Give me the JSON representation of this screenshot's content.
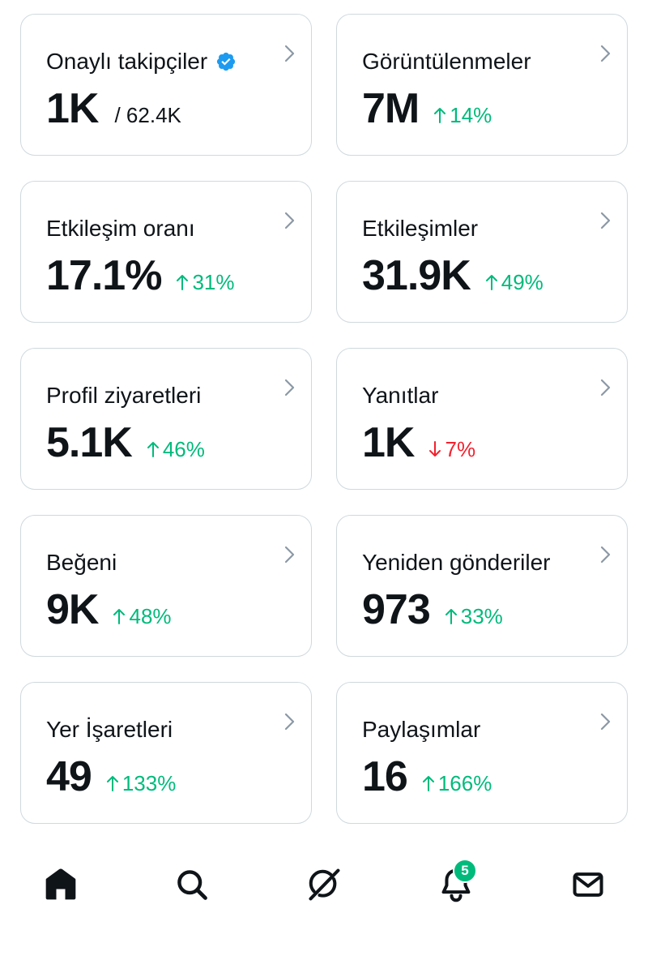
{
  "cards": [
    {
      "title": "Onaylı takipçiler",
      "value": "1K",
      "sub": "/ 62.4K",
      "verified": true
    },
    {
      "title": "Görüntülenmeler",
      "value": "7M",
      "change": "14%",
      "direction": "up"
    },
    {
      "title": "Etkileşim oranı",
      "value": "17.1%",
      "change": "31%",
      "direction": "up"
    },
    {
      "title": "Etkileşimler",
      "value": "31.9K",
      "change": "49%",
      "direction": "up"
    },
    {
      "title": "Profil ziyaretleri",
      "value": "5.1K",
      "change": "46%",
      "direction": "up"
    },
    {
      "title": "Yanıtlar",
      "value": "1K",
      "change": "7%",
      "direction": "down"
    },
    {
      "title": "Beğeni",
      "value": "9K",
      "change": "48%",
      "direction": "up"
    },
    {
      "title": "Yeniden gönderiler",
      "value": "973",
      "change": "33%",
      "direction": "up"
    },
    {
      "title": "Yer İşaretleri",
      "value": "49",
      "change": "133%",
      "direction": "up"
    },
    {
      "title": "Paylaşımlar",
      "value": "16",
      "change": "166%",
      "direction": "up"
    }
  ],
  "nav": {
    "items": [
      {
        "icon": "home-icon"
      },
      {
        "icon": "search-icon"
      },
      {
        "icon": "grok-icon"
      },
      {
        "icon": "bell-icon",
        "badge": "5"
      },
      {
        "icon": "mail-icon"
      }
    ]
  },
  "colors": {
    "up": "#00ba7c",
    "down": "#f4212e",
    "verified": "#1d9bf0",
    "badge": "#00ba7c"
  }
}
